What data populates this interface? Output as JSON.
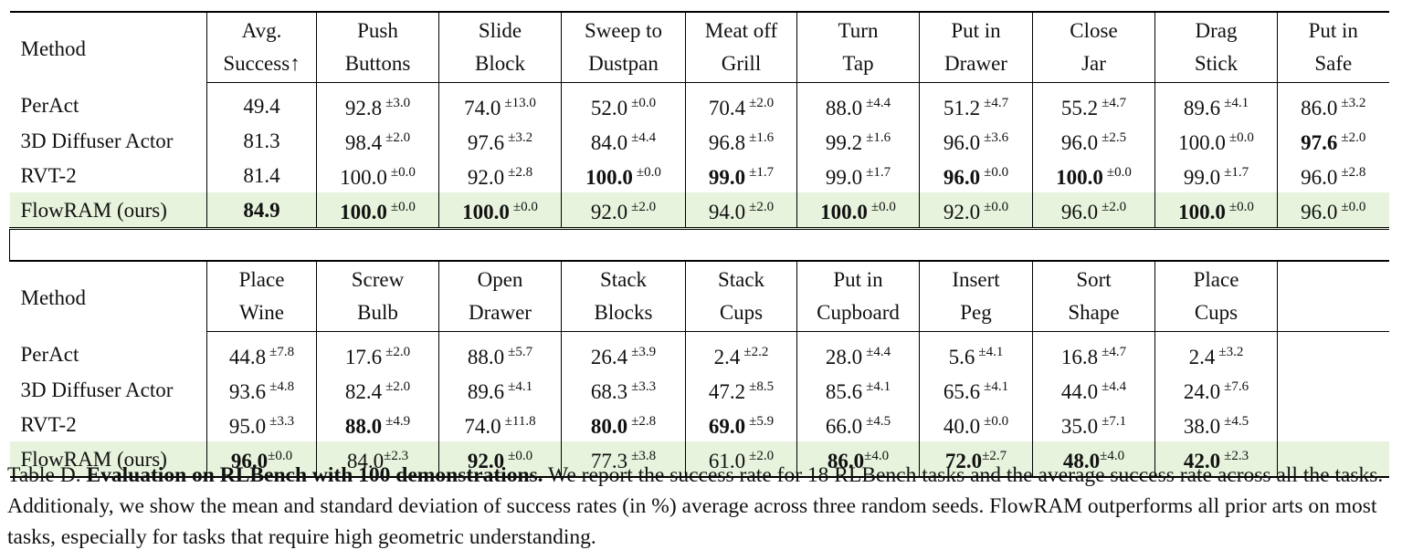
{
  "table": {
    "method_header": "Method",
    "block1": {
      "headers": [
        [
          "Avg.",
          "Success↑"
        ],
        [
          "Push",
          "Buttons"
        ],
        [
          "Slide",
          "Block"
        ],
        [
          "Sweep to",
          "Dustpan"
        ],
        [
          "Meat off",
          "Grill"
        ],
        [
          "Turn",
          "Tap"
        ],
        [
          "Put in",
          "Drawer"
        ],
        [
          "Close",
          "Jar"
        ],
        [
          "Drag",
          "Stick"
        ],
        [
          "Put in",
          "Safe"
        ]
      ],
      "rows": [
        {
          "method": "PerAct",
          "cells": [
            {
              "v": "49.4",
              "sd": "",
              "bold": false
            },
            {
              "v": "92.8",
              "sd": "±3.0",
              "bold": false
            },
            {
              "v": "74.0",
              "sd": "±13.0",
              "bold": false
            },
            {
              "v": "52.0",
              "sd": "±0.0",
              "bold": false
            },
            {
              "v": "70.4",
              "sd": "±2.0",
              "bold": false
            },
            {
              "v": "88.0",
              "sd": "±4.4",
              "bold": false
            },
            {
              "v": "51.2",
              "sd": "±4.7",
              "bold": false
            },
            {
              "v": "55.2",
              "sd": "±4.7",
              "bold": false
            },
            {
              "v": "89.6",
              "sd": "±4.1",
              "bold": false
            },
            {
              "v": "86.0",
              "sd": "±3.2",
              "bold": false
            }
          ]
        },
        {
          "method": "3D Diffuser Actor",
          "cells": [
            {
              "v": "81.3",
              "sd": "",
              "bold": false
            },
            {
              "v": "98.4",
              "sd": "±2.0",
              "bold": false
            },
            {
              "v": "97.6",
              "sd": "±3.2",
              "bold": false
            },
            {
              "v": "84.0",
              "sd": "±4.4",
              "bold": false
            },
            {
              "v": "96.8",
              "sd": "±1.6",
              "bold": false
            },
            {
              "v": "99.2",
              "sd": "±1.6",
              "bold": false
            },
            {
              "v": "96.0",
              "sd": "±3.6",
              "bold": false
            },
            {
              "v": "96.0",
              "sd": "±2.5",
              "bold": false
            },
            {
              "v": "100.0",
              "sd": "±0.0",
              "bold": false
            },
            {
              "v": "97.6",
              "sd": "±2.0",
              "bold": true
            }
          ]
        },
        {
          "method": "RVT-2",
          "cells": [
            {
              "v": "81.4",
              "sd": "",
              "bold": false
            },
            {
              "v": "100.0",
              "sd": "±0.0",
              "bold": false
            },
            {
              "v": "92.0",
              "sd": "±2.8",
              "bold": false
            },
            {
              "v": "100.0",
              "sd": "±0.0",
              "bold": true
            },
            {
              "v": "99.0",
              "sd": "±1.7",
              "bold": true
            },
            {
              "v": "99.0",
              "sd": "±1.7",
              "bold": false
            },
            {
              "v": "96.0",
              "sd": "±0.0",
              "bold": true
            },
            {
              "v": "100.0",
              "sd": "±0.0",
              "bold": true
            },
            {
              "v": "99.0",
              "sd": "±1.7",
              "bold": false
            },
            {
              "v": "96.0",
              "sd": "±2.8",
              "bold": false
            }
          ]
        },
        {
          "method": "FlowRAM (ours)",
          "cells": [
            {
              "v": "84.9",
              "sd": "",
              "bold": true
            },
            {
              "v": "100.0",
              "sd": "±0.0",
              "bold": true
            },
            {
              "v": "100.0",
              "sd": "±0.0",
              "bold": true
            },
            {
              "v": "92.0",
              "sd": "±2.0",
              "bold": false
            },
            {
              "v": "94.0",
              "sd": "±2.0",
              "bold": false
            },
            {
              "v": "100.0",
              "sd": "±0.0",
              "bold": true
            },
            {
              "v": "92.0",
              "sd": "±0.0",
              "bold": false
            },
            {
              "v": "96.0",
              "sd": "±2.0",
              "bold": false
            },
            {
              "v": "100.0",
              "sd": "±0.0",
              "bold": true
            },
            {
              "v": "96.0",
              "sd": "±0.0",
              "bold": false
            }
          ]
        }
      ]
    },
    "block2": {
      "headers": [
        [
          "Place",
          "Wine"
        ],
        [
          "Screw",
          "Bulb"
        ],
        [
          "Open",
          "Drawer"
        ],
        [
          "Stack",
          "Blocks"
        ],
        [
          "Stack",
          "Cups"
        ],
        [
          "Put in",
          "Cupboard"
        ],
        [
          "Insert",
          "Peg"
        ],
        [
          "Sort",
          "Shape"
        ],
        [
          "Place",
          "Cups"
        ],
        [
          "",
          ""
        ]
      ],
      "rows": [
        {
          "method": "PerAct",
          "cells": [
            {
              "v": "44.8",
              "sd": "±7.8",
              "bold": false
            },
            {
              "v": "17.6",
              "sd": "±2.0",
              "bold": false
            },
            {
              "v": "88.0",
              "sd": "±5.7",
              "bold": false
            },
            {
              "v": "26.4",
              "sd": "±3.9",
              "bold": false
            },
            {
              "v": "2.4",
              "sd": "±2.2",
              "bold": false
            },
            {
              "v": "28.0",
              "sd": "±4.4",
              "bold": false
            },
            {
              "v": "5.6",
              "sd": "±4.1",
              "bold": false
            },
            {
              "v": "16.8",
              "sd": "±4.7",
              "bold": false
            },
            {
              "v": "2.4",
              "sd": "±3.2",
              "bold": false
            },
            {
              "v": "",
              "sd": "",
              "bold": false
            }
          ]
        },
        {
          "method": "3D Diffuser Actor",
          "cells": [
            {
              "v": "93.6",
              "sd": "±4.8",
              "bold": false
            },
            {
              "v": "82.4",
              "sd": "±2.0",
              "bold": false
            },
            {
              "v": "89.6",
              "sd": "±4.1",
              "bold": false
            },
            {
              "v": "68.3",
              "sd": "±3.3",
              "bold": false
            },
            {
              "v": "47.2",
              "sd": "±8.5",
              "bold": false
            },
            {
              "v": "85.6",
              "sd": "±4.1",
              "bold": false
            },
            {
              "v": "65.6",
              "sd": "±4.1",
              "bold": false
            },
            {
              "v": "44.0",
              "sd": "±4.4",
              "bold": false
            },
            {
              "v": "24.0",
              "sd": "±7.6",
              "bold": false
            },
            {
              "v": "",
              "sd": "",
              "bold": false
            }
          ]
        },
        {
          "method": "RVT-2",
          "cells": [
            {
              "v": "95.0",
              "sd": "±3.3",
              "bold": false
            },
            {
              "v": "88.0",
              "sd": "±4.9",
              "bold": true
            },
            {
              "v": "74.0",
              "sd": "±11.8",
              "bold": false
            },
            {
              "v": "80.0",
              "sd": "±2.8",
              "bold": true
            },
            {
              "v": "69.0",
              "sd": "±5.9",
              "bold": true
            },
            {
              "v": "66.0",
              "sd": "±4.5",
              "bold": false
            },
            {
              "v": "40.0",
              "sd": "±0.0",
              "bold": false
            },
            {
              "v": "35.0",
              "sd": "±7.1",
              "bold": false
            },
            {
              "v": "38.0",
              "sd": "±4.5",
              "bold": false
            },
            {
              "v": "",
              "sd": "",
              "bold": false
            }
          ]
        },
        {
          "method": "FlowRAM (ours)",
          "cells": [
            {
              "v": "96.0",
              "sd": "±0.0",
              "bold": true,
              "tight": true
            },
            {
              "v": "84.0",
              "sd": "±2.3",
              "bold": false,
              "tight": true
            },
            {
              "v": "92.0",
              "sd": "±0.0",
              "bold": true
            },
            {
              "v": "77.3",
              "sd": "±3.8",
              "bold": false
            },
            {
              "v": "61.0",
              "sd": "±2.0",
              "bold": false
            },
            {
              "v": "86.0",
              "sd": "±4.0",
              "bold": true,
              "tight": true
            },
            {
              "v": "72.0",
              "sd": "±2.7",
              "bold": true,
              "tight": true
            },
            {
              "v": "48.0",
              "sd": "±4.0",
              "bold": true,
              "tight": true
            },
            {
              "v": "42.0",
              "sd": "±2.3",
              "bold": true
            },
            {
              "v": "",
              "sd": "",
              "bold": false
            }
          ]
        }
      ]
    }
  },
  "caption": {
    "label": "Table D.",
    "title": "Evaluation on RLBench with 100 demonstrations.",
    "body": "We report the success rate for 18 RLBench tasks and the average success rate across all the tasks. Additionaly, we show the mean and standard deviation of success rates (in %) average across three random seeds. FlowRAM outperforms all prior arts on most tasks, especially for tasks that require high geometric understanding."
  }
}
